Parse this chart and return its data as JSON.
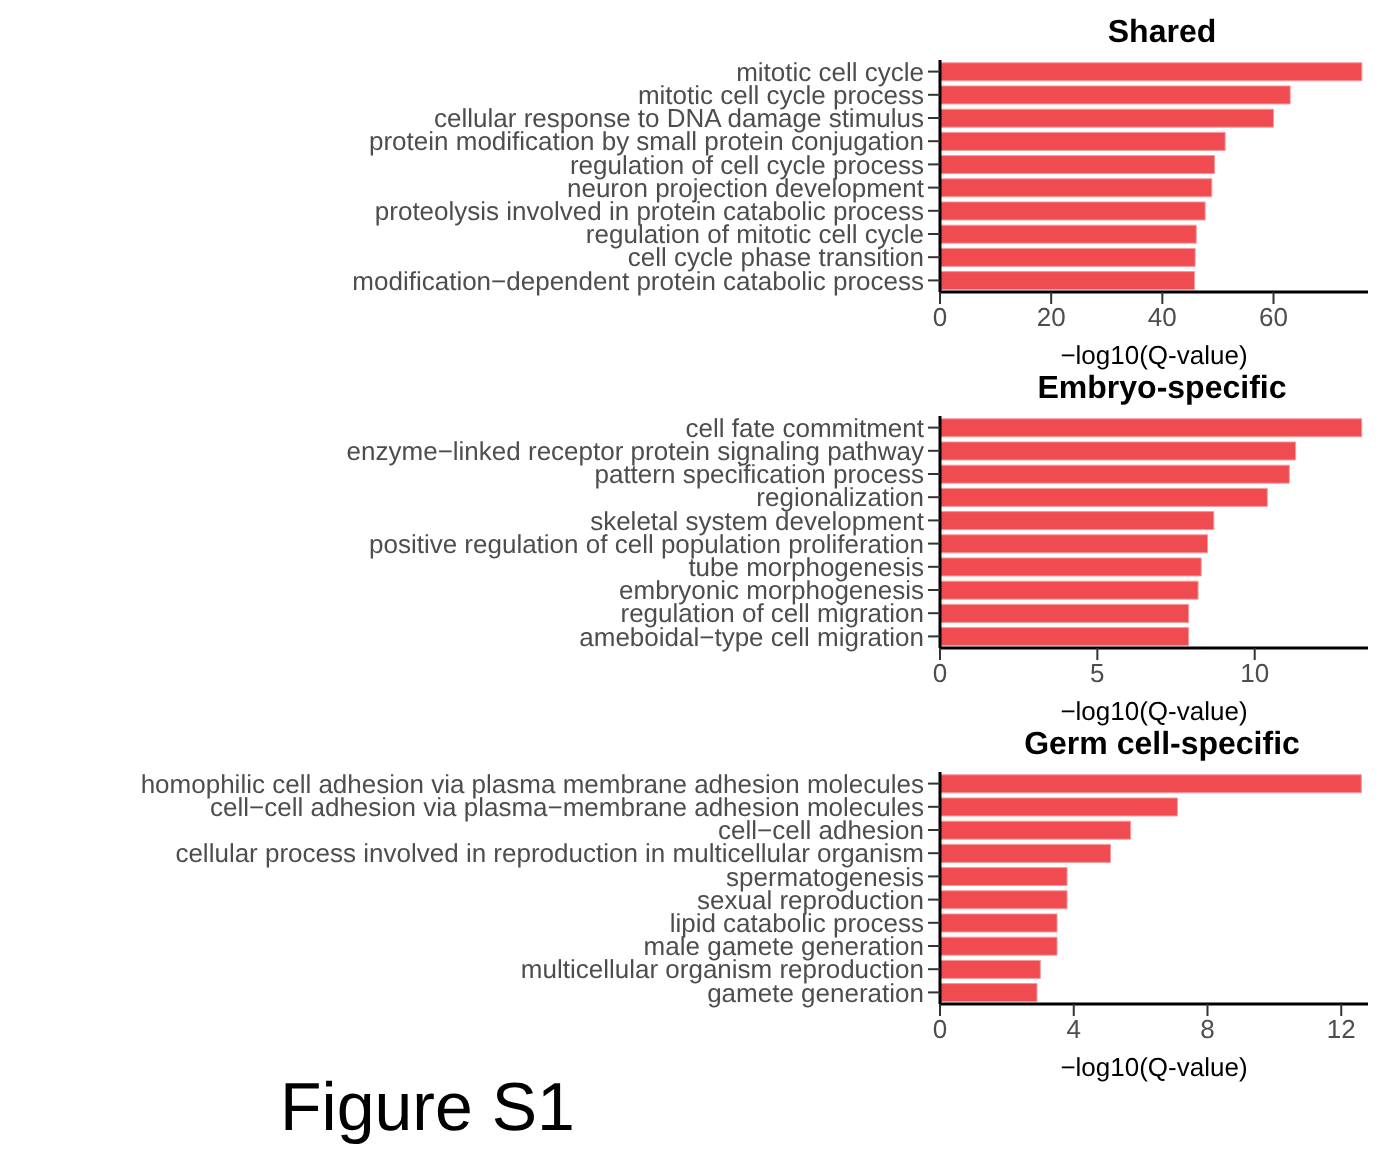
{
  "chart_data": [
    {
      "type": "bar",
      "orientation": "horizontal",
      "title": "Shared",
      "xlabel": "−log10(Q-value)",
      "categories": [
        "mitotic cell cycle",
        "mitotic cell cycle process",
        "cellular response to DNA damage stimulus",
        "protein modification by small protein conjugation",
        "regulation of cell cycle process",
        "neuron projection development",
        "proteolysis involved in protein catabolic process",
        "regulation of mitotic cell cycle",
        "cell cycle phase transition",
        "modification−dependent protein catabolic process"
      ],
      "values": [
        75.9,
        63,
        60,
        51.3,
        49.4,
        48.9,
        47.7,
        46.1,
        45.9,
        45.8
      ],
      "color": "#ef4b50",
      "xlim": [
        0,
        77
      ],
      "xticks": [
        0,
        20,
        40,
        60
      ],
      "grid": false,
      "legend": false
    },
    {
      "type": "bar",
      "orientation": "horizontal",
      "title": "Embryo-specific",
      "xlabel": "−log10(Q-value)",
      "categories": [
        "cell fate commitment",
        "enzyme−linked receptor protein signaling pathway",
        "pattern specification process",
        "regionalization",
        "skeletal system development",
        "positive regulation of cell population proliferation",
        "tube morphogenesis",
        "embryonic morphogenesis",
        "regulation of cell migration",
        "ameboidal−type cell migration"
      ],
      "values": [
        13.4,
        11.3,
        11.1,
        10.4,
        8.7,
        8.5,
        8.3,
        8.2,
        7.9,
        7.9
      ],
      "color": "#ef4b50",
      "xlim": [
        0,
        13.6
      ],
      "xticks": [
        0,
        5,
        10
      ],
      "grid": false,
      "legend": false
    },
    {
      "type": "bar",
      "orientation": "horizontal",
      "title": "Germ cell-specific",
      "xlabel": "−log10(Q-value)",
      "categories": [
        "homophilic cell adhesion via plasma membrane adhesion molecules",
        "cell−cell adhesion via plasma−membrane adhesion molecules",
        "cell−cell adhesion",
        "cellular process involved in reproduction in multicellular organism",
        "spermatogenesis",
        "sexual reproduction",
        "lipid catabolic process",
        "male gamete generation",
        "multicellular organism reproduction",
        "gamete generation"
      ],
      "values": [
        12.6,
        7.1,
        5.7,
        5.1,
        3.8,
        3.8,
        3.5,
        3.5,
        3.0,
        2.9
      ],
      "color": "#ef4b50",
      "xlim": [
        0,
        12.8
      ],
      "xticks": [
        0,
        4,
        8,
        12
      ],
      "grid": false,
      "legend": false,
      "annotations": [
        "Figure S1"
      ]
    }
  ]
}
